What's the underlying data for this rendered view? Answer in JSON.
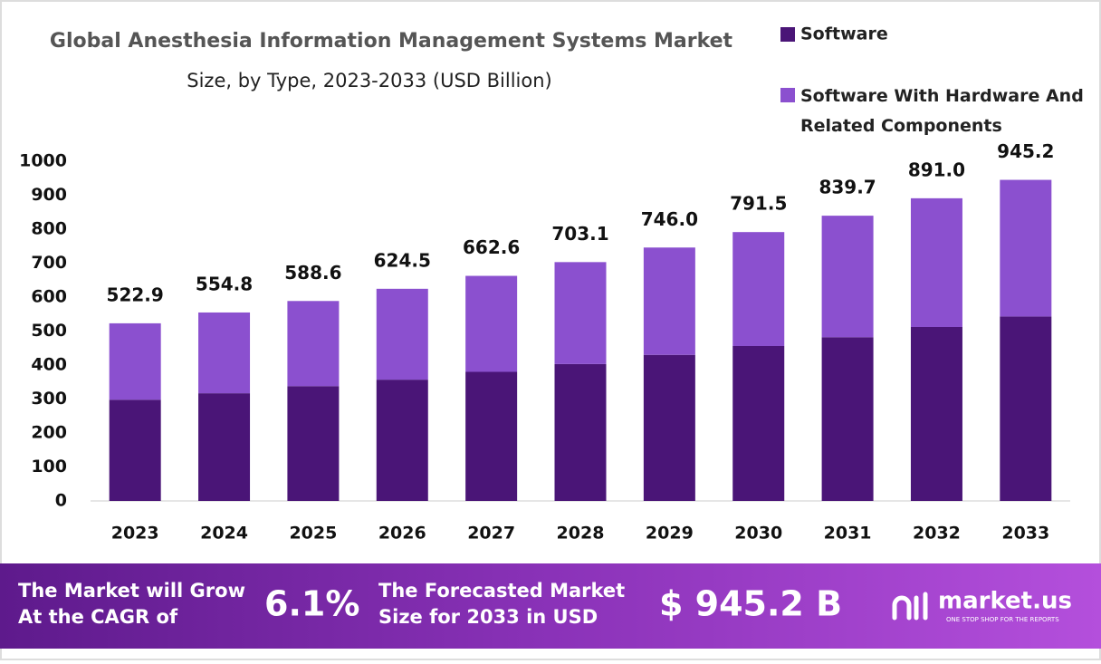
{
  "chart_data": {
    "type": "stacked_bar",
    "title": "Global Anesthesia Information Management Systems Market",
    "subtitle": "Size, by Type, 2023-2033 (USD Billion)",
    "categories": [
      "2023",
      "2024",
      "2025",
      "2026",
      "2027",
      "2028",
      "2029",
      "2030",
      "2031",
      "2032",
      "2033"
    ],
    "series": [
      {
        "name": "Software",
        "color": "#4a1577",
        "values": [
          298,
          317,
          338,
          357,
          380,
          403,
          430,
          456,
          482,
          512,
          543
        ]
      },
      {
        "name": "Software With Hardware And Related Components",
        "color": "#8b50cf",
        "values": [
          224.9,
          237.8,
          250.6,
          267.5,
          282.6,
          300.1,
          316,
          335.5,
          357.7,
          379,
          402.2
        ]
      }
    ],
    "totals": [
      522.9,
      554.8,
      588.6,
      624.5,
      662.6,
      703.1,
      746,
      791.5,
      839.7,
      891,
      945.2
    ],
    "total_labels": [
      "522.9",
      "554.8",
      "588.6",
      "624.5",
      "662.6",
      "703.1",
      "746.0",
      "791.5",
      "839.7",
      "891.0",
      "945.2"
    ],
    "ylim": [
      0,
      1000
    ],
    "yticks": [
      0,
      100,
      200,
      300,
      400,
      500,
      600,
      700,
      800,
      900,
      1000
    ],
    "grid": false,
    "legend": "top-right"
  },
  "footer": {
    "cagr_text": [
      "The Market will Grow",
      "At the CAGR of"
    ],
    "cagr_value": "6.1%",
    "forecast_text": [
      "The Forecasted Market",
      "Size for 2033 in USD"
    ],
    "forecast_value": "$ 945.2 B",
    "brand": "market.us",
    "tagline": "ONE STOP SHOP FOR THE REPORTS"
  }
}
